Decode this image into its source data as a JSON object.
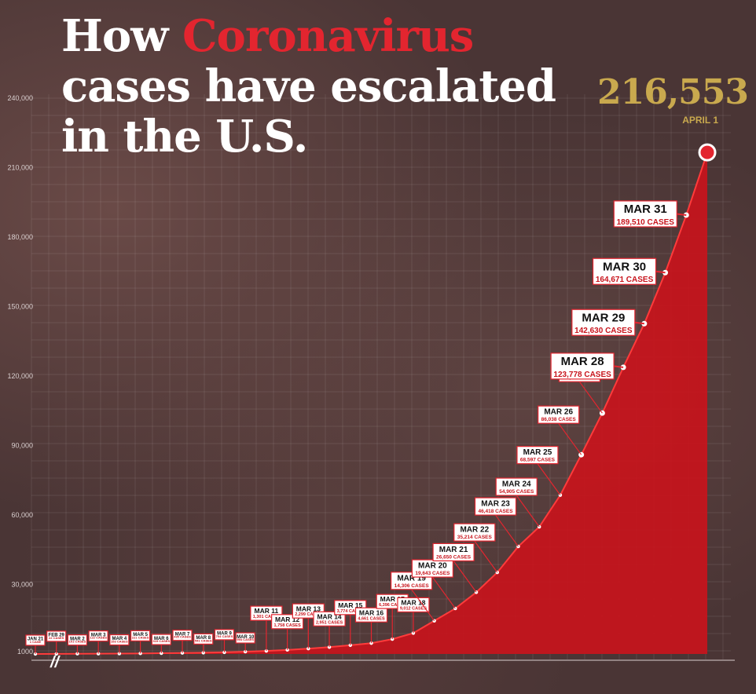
{
  "header": {
    "title_pre": "How ",
    "title_highlight": "Coronavirus",
    "title_post": " cases have escalated in the U.S."
  },
  "peak": {
    "value": "216,553",
    "date": "APRIL 1"
  },
  "colors": {
    "accent": "#e3252f",
    "area": "#c8141c",
    "gold": "#c9a94e",
    "background": "#4a3535"
  },
  "chart_data": {
    "type": "area",
    "title": "How Coronavirus cases have escalated in the U.S.",
    "xlabel": "",
    "ylabel": "",
    "ylim": [
      0,
      240000
    ],
    "y_ticks": [
      1000,
      30000,
      60000,
      90000,
      120000,
      150000,
      180000,
      210000,
      240000
    ],
    "y_tick_labels": [
      "1000",
      "30,000",
      "60,000",
      "90,000",
      "120,000",
      "150,000",
      "180,000",
      "210,000",
      "240,000"
    ],
    "grid": true,
    "axis_break": true,
    "points": [
      {
        "date": "JAN 21",
        "value": 1,
        "label": "1 CASE"
      },
      {
        "date": "FEB 29",
        "value": 22,
        "label": "22 CASES"
      },
      {
        "date": "MAR 2",
        "value": 101,
        "label": "101 CASES"
      },
      {
        "date": "MAR 3",
        "value": 122,
        "label": "122 CASES"
      },
      {
        "date": "MAR 4",
        "value": 153,
        "label": "153 CASES"
      },
      {
        "date": "MAR 5",
        "value": 221,
        "label": "221 CASES"
      },
      {
        "date": "MAR 6",
        "value": 319,
        "label": "319 CASES"
      },
      {
        "date": "MAR 7",
        "value": 435,
        "label": "435 CASES"
      },
      {
        "date": "MAR 8",
        "value": 541,
        "label": "541 CASES"
      },
      {
        "date": "MAR 9",
        "value": 704,
        "label": "704 CASES"
      },
      {
        "date": "MAR 10",
        "value": 994,
        "label": "994 CASES"
      },
      {
        "date": "MAR 11",
        "value": 1301,
        "label": "1,301 CASES"
      },
      {
        "date": "MAR 12",
        "value": 1758,
        "label": "1,758 CASES"
      },
      {
        "date": "MAR 13",
        "value": 2299,
        "label": "2,299 CASES"
      },
      {
        "date": "MAR 14",
        "value": 2951,
        "label": "2,951 CASES"
      },
      {
        "date": "MAR 15",
        "value": 3774,
        "label": "3,774 CASES"
      },
      {
        "date": "MAR 16",
        "value": 4661,
        "label": "4,661 CASES"
      },
      {
        "date": "MAR 17",
        "value": 6396,
        "label": "6,396 CASES"
      },
      {
        "date": "MAR 18",
        "value": 9012,
        "label": "9,012 CASES"
      },
      {
        "date": "MAR 19",
        "value": 14306,
        "label": "14,306 CASES"
      },
      {
        "date": "MAR 20",
        "value": 19643,
        "label": "19,643 CASES"
      },
      {
        "date": "MAR 21",
        "value": 26650,
        "label": "26,650 CASES"
      },
      {
        "date": "MAR 22",
        "value": 35214,
        "label": "35,214 CASES"
      },
      {
        "date": "MAR 23",
        "value": 46418,
        "label": "46,418 CASES"
      },
      {
        "date": "MAR 24",
        "value": 54905,
        "label": "54,905 CASES"
      },
      {
        "date": "MAR 25",
        "value": 68597,
        "label": "68,597 CASES"
      },
      {
        "date": "MAR 26",
        "value": 86038,
        "label": "86,038 CASES"
      },
      {
        "date": "MAR 27",
        "value": 104007,
        "label": "104,007 CASES"
      },
      {
        "date": "MAR 28",
        "value": 123778,
        "label": "123,778 CASES"
      },
      {
        "date": "MAR 29",
        "value": 142630,
        "label": "142,630 CASES"
      },
      {
        "date": "MAR 30",
        "value": 164671,
        "label": "164,671 CASES"
      },
      {
        "date": "MAR 31",
        "value": 189510,
        "label": "189,510 CASES"
      },
      {
        "date": "APRIL 1",
        "value": 216553,
        "label": "216,553"
      }
    ]
  }
}
